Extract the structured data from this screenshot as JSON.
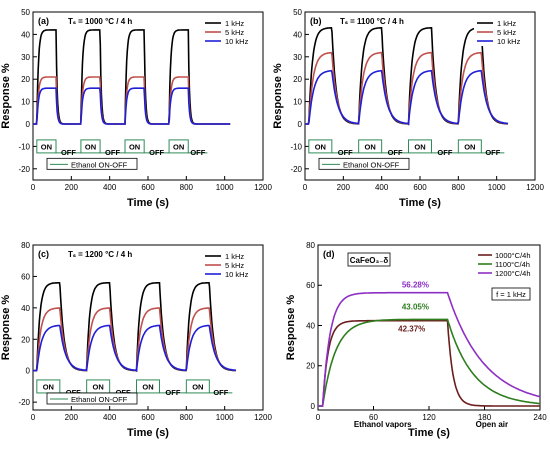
{
  "chart_data": [
    {
      "id": "a",
      "type": "line",
      "panel_label": "(a)",
      "condition_label": "Tₛ = 1000 °C / 4 h",
      "xlabel": "Time (s)",
      "ylabel": "Response %",
      "xlim": [
        0,
        1200
      ],
      "ylim": [
        -25,
        50
      ],
      "x_ticks": [
        "0",
        "200",
        "400",
        "600",
        "800",
        "1000",
        "1200"
      ],
      "y_ticks": [
        "-20",
        "-10",
        "0",
        "10",
        "20",
        "30",
        "40",
        "50"
      ],
      "legend_position": "top-right",
      "series": [
        {
          "name": "1 kHz",
          "color": "#000000",
          "peak": 42,
          "cycles": [
            [
              20,
              120
            ],
            [
              250,
              350
            ],
            [
              480,
              580
            ],
            [
              710,
              810
            ]
          ]
        },
        {
          "name": "5 kHz",
          "color": "#c0504d",
          "peak": 21,
          "cycles": [
            [
              20,
              120
            ],
            [
              250,
              350
            ],
            [
              480,
              580
            ],
            [
              710,
              810
            ]
          ]
        },
        {
          "name": "10 kHz",
          "color": "#1f1fd6",
          "peak": 16,
          "cycles": [
            [
              20,
              120
            ],
            [
              250,
              350
            ],
            [
              480,
              580
            ],
            [
              710,
              810
            ]
          ]
        }
      ],
      "on_off_labels": [
        "ON",
        "OFF",
        "ON",
        "OFF",
        "ON",
        "OFF",
        "ON",
        "OFF"
      ],
      "on_off_legend": "Ethanol ON-OFF"
    },
    {
      "id": "b",
      "type": "line",
      "panel_label": "(b)",
      "condition_label": "Tₛ = 1100 °C / 4 h",
      "xlabel": "Time (s)",
      "ylabel": "Response %",
      "xlim": [
        0,
        1200
      ],
      "ylim": [
        -25,
        50
      ],
      "x_ticks": [
        "0",
        "200",
        "400",
        "600",
        "800",
        "1000",
        "1200"
      ],
      "y_ticks": [
        "-20",
        "-10",
        "0",
        "10",
        "20",
        "30",
        "40",
        "50"
      ],
      "legend_position": "top-right",
      "series": [
        {
          "name": "1 kHz",
          "color": "#000000",
          "peak": 43,
          "cycles": [
            [
              20,
              140
            ],
            [
              280,
              400
            ],
            [
              540,
              660
            ],
            [
              800,
              920
            ]
          ]
        },
        {
          "name": "5 kHz",
          "color": "#c0504d",
          "peak": 32,
          "cycles": [
            [
              20,
              140
            ],
            [
              280,
              400
            ],
            [
              540,
              660
            ],
            [
              800,
              920
            ]
          ]
        },
        {
          "name": "10 kHz",
          "color": "#1f1fd6",
          "peak": 24,
          "cycles": [
            [
              20,
              140
            ],
            [
              280,
              400
            ],
            [
              540,
              660
            ],
            [
              800,
              920
            ]
          ]
        }
      ],
      "on_off_labels": [
        "ON",
        "OFF",
        "ON",
        "OFF",
        "ON",
        "OFF",
        "ON",
        "OFF"
      ],
      "on_off_legend": "Ethanol ON-OFF"
    },
    {
      "id": "c",
      "type": "line",
      "panel_label": "(c)",
      "condition_label": "Tₛ = 1200 °C / 4 h",
      "xlabel": "Time (s)",
      "ylabel": "Response %",
      "xlim": [
        0,
        1200
      ],
      "ylim": [
        -25,
        80
      ],
      "x_ticks": [
        "0",
        "200",
        "400",
        "600",
        "800",
        "1000",
        "1200"
      ],
      "y_ticks": [
        "-20",
        "0",
        "20",
        "40",
        "60",
        "80"
      ],
      "legend_position": "top-right",
      "series": [
        {
          "name": "1 kHz",
          "color": "#000000",
          "peak": 56,
          "cycles": [
            [
              20,
              140
            ],
            [
              280,
              400
            ],
            [
              540,
              660
            ],
            [
              800,
              920
            ]
          ]
        },
        {
          "name": "5 kHz",
          "color": "#c0504d",
          "peak": 40,
          "cycles": [
            [
              20,
              140
            ],
            [
              280,
              400
            ],
            [
              540,
              660
            ],
            [
              800,
              920
            ]
          ]
        },
        {
          "name": "10 kHz",
          "color": "#1f1fd6",
          "peak": 29,
          "cycles": [
            [
              20,
              140
            ],
            [
              280,
              400
            ],
            [
              540,
              660
            ],
            [
              800,
              920
            ]
          ]
        }
      ],
      "on_off_labels": [
        "ON",
        "OFF",
        "ON",
        "OFF",
        "ON",
        "OFF",
        "ON",
        "OFF"
      ],
      "on_off_legend": "Ethanol ON-OFF"
    },
    {
      "id": "d",
      "type": "line",
      "panel_label": "(d)",
      "material_label": "CaFeO₃₋δ",
      "frequency_label": "f = 1 kHz",
      "xlabel": "Time (s)",
      "ylabel": "Response %",
      "xlim": [
        0,
        240
      ],
      "ylim": [
        -2,
        80
      ],
      "x_ticks": [
        "0",
        "60",
        "120",
        "180",
        "240"
      ],
      "y_ticks": [
        "0",
        "20",
        "40",
        "60",
        "80"
      ],
      "legend_position": "top-right",
      "series": [
        {
          "name": "1000°C/4h",
          "color": "#6b1e1e",
          "peak": 42.37,
          "on_time": 5,
          "off_time": 140,
          "tau_rise": 6,
          "tau_fall": 6
        },
        {
          "name": "1100°C/4h",
          "color": "#2e7d1f",
          "peak": 43.05,
          "on_time": 5,
          "off_time": 140,
          "tau_rise": 14,
          "tau_fall": 28
        },
        {
          "name": "1200°C/4h",
          "color": "#8e2fc4",
          "peak": 56.28,
          "on_time": 5,
          "off_time": 140,
          "tau_rise": 8,
          "tau_fall": 40
        }
      ],
      "annotations": {
        "peak_labels": [
          "56.28%",
          "43.05%",
          "42.37%"
        ],
        "ethanol_label": "Ethanol vapors",
        "air_label": "Open air"
      }
    }
  ]
}
